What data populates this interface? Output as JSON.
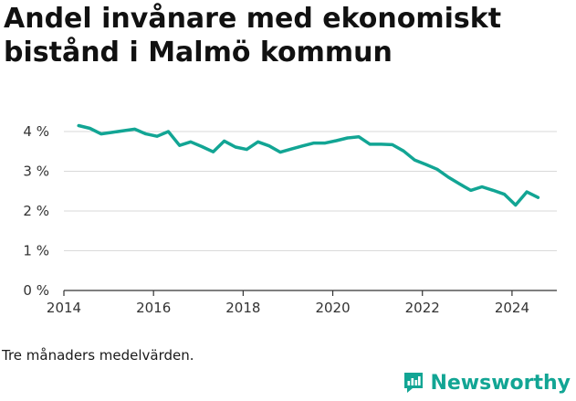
{
  "title": "Andel invånare med ekonomiskt bistånd i Malmö kommun",
  "footnote": "Tre månaders medelvärden.",
  "brand": {
    "name": "Newsworthy",
    "color": "#12a594"
  },
  "chart_data": {
    "type": "line",
    "title": "Andel invånare med ekonomiskt bistånd i Malmö kommun",
    "xlabel": "",
    "ylabel": "",
    "xlim": [
      2014,
      2025
    ],
    "ylim": [
      0,
      4
    ],
    "x_ticks": [
      2014,
      2016,
      2018,
      2020,
      2022,
      2024
    ],
    "x_tick_labels": [
      "2014",
      "2016",
      "2018",
      "2020",
      "2022",
      "2024"
    ],
    "y_ticks": [
      0,
      1,
      2,
      3,
      4
    ],
    "y_tick_labels": [
      "0 %",
      "1 %",
      "2 %",
      "3 %",
      "4 %"
    ],
    "grid": true,
    "line_color": "#12a594",
    "series": [
      {
        "x": [
          2014.33,
          2014.58,
          2014.83,
          2015.08,
          2015.33,
          2015.58,
          2015.83,
          2016.08,
          2016.33,
          2016.58,
          2016.83,
          2017.08,
          2017.33,
          2017.58,
          2017.83,
          2018.08,
          2018.33,
          2018.58,
          2018.83,
          2019.08,
          2019.33,
          2019.58,
          2019.83,
          2020.08,
          2020.33,
          2020.58,
          2020.83,
          2021.08,
          2021.33,
          2021.58,
          2021.83,
          2022.08,
          2022.33,
          2022.58,
          2022.83,
          2023.08,
          2023.33,
          2023.58,
          2023.83,
          2024.08,
          2024.33,
          2024.58
        ],
        "y": [
          4.15,
          4.08,
          3.94,
          3.98,
          4.02,
          4.06,
          3.94,
          3.88,
          4.0,
          3.65,
          3.74,
          3.62,
          3.49,
          3.76,
          3.61,
          3.55,
          3.74,
          3.64,
          3.48,
          3.56,
          3.64,
          3.71,
          3.71,
          3.77,
          3.84,
          3.87,
          3.68,
          3.68,
          3.67,
          3.51,
          3.28,
          3.17,
          3.05,
          2.85,
          2.68,
          2.52,
          2.61,
          2.52,
          2.42,
          2.15,
          2.48,
          2.34
        ]
      }
    ]
  }
}
